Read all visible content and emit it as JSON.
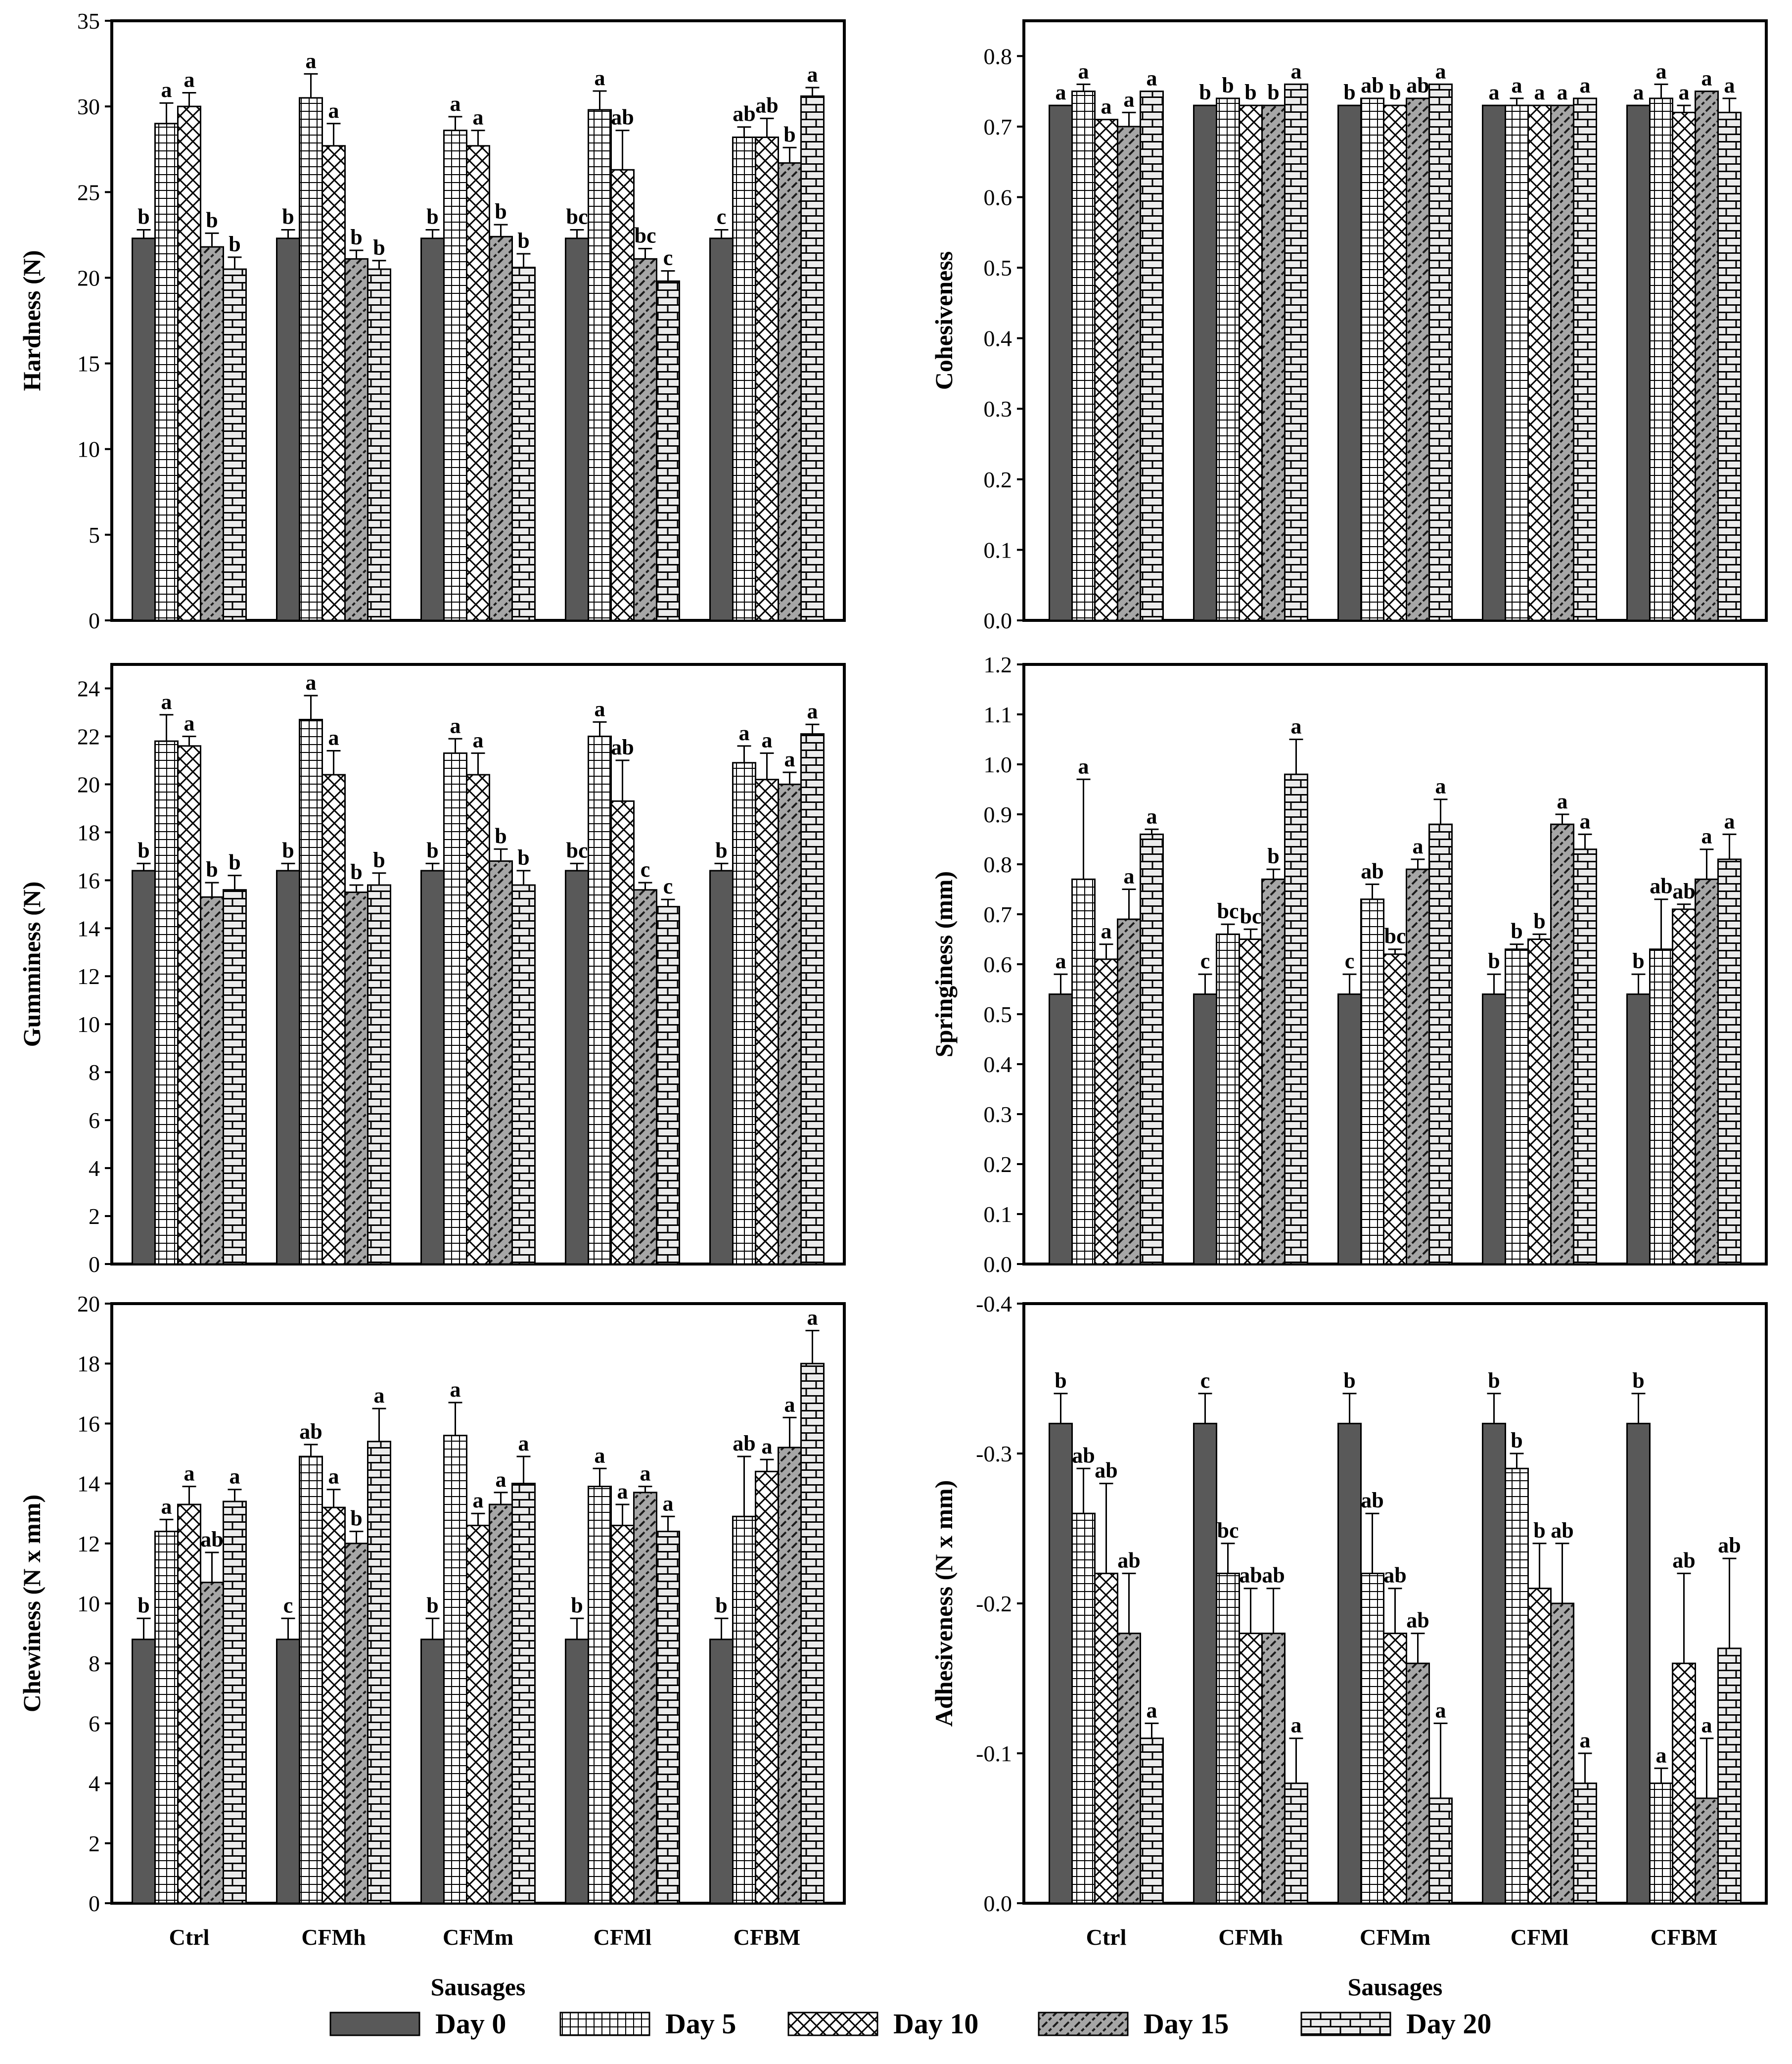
{
  "figure": {
    "categories": [
      "Ctrl",
      "CFMh",
      "CFMm",
      "CFMl",
      "CFBM"
    ],
    "series_names": [
      "Day 0",
      "Day 5",
      "Day 10",
      "Day 15",
      "Day 20"
    ],
    "xlabel": "Sausages",
    "legend_position": "bottom",
    "series_colors": [
      "#595959",
      "#ffffff",
      "#ffffff",
      "#a6a6a6",
      "#ececec"
    ],
    "series_patterns": [
      "solid",
      "grid",
      "crosshatch",
      "diagonal",
      "brick"
    ]
  },
  "chart_data": [
    {
      "type": "bar",
      "panel": "hardness",
      "ylabel": "Hardness (N)",
      "ylim": [
        0,
        35
      ],
      "yticks": [
        0,
        5,
        10,
        15,
        20,
        25,
        30,
        35
      ],
      "ytick_labels": [
        "0",
        "5",
        "10",
        "15",
        "20",
        "25",
        "30",
        "35"
      ],
      "xtick_labels_shown": false,
      "categories": [
        "Ctrl",
        "CFMh",
        "CFMm",
        "CFMl",
        "CFBM"
      ],
      "series": [
        {
          "name": "Day 0",
          "values": [
            22.3,
            22.3,
            22.3,
            22.3,
            22.3
          ],
          "errors": [
            0.5,
            0.5,
            0.5,
            0.5,
            0.5
          ],
          "letters": [
            "b",
            "b",
            "b",
            "bc",
            "c"
          ]
        },
        {
          "name": "Day 5",
          "values": [
            29.0,
            30.5,
            28.6,
            29.8,
            28.2
          ],
          "errors": [
            1.2,
            1.4,
            0.8,
            1.1,
            0.6
          ],
          "letters": [
            "a",
            "a",
            "a",
            "a",
            "ab"
          ]
        },
        {
          "name": "Day 10",
          "values": [
            30.0,
            27.7,
            27.7,
            26.3,
            28.2
          ],
          "errors": [
            0.8,
            1.3,
            0.9,
            2.3,
            1.1
          ],
          "letters": [
            "a",
            "a",
            "a",
            "ab",
            "ab"
          ]
        },
        {
          "name": "Day 15",
          "values": [
            21.8,
            21.1,
            22.4,
            21.1,
            26.7
          ],
          "errors": [
            0.8,
            0.5,
            0.7,
            0.6,
            0.9
          ],
          "letters": [
            "b",
            "b",
            "b",
            "bc",
            "b"
          ]
        },
        {
          "name": "Day 20",
          "values": [
            20.5,
            20.5,
            20.6,
            19.8,
            30.6
          ],
          "errors": [
            0.7,
            0.5,
            0.8,
            0.6,
            0.5
          ],
          "letters": [
            "b",
            "b",
            "b",
            "c",
            "a"
          ]
        }
      ]
    },
    {
      "type": "bar",
      "panel": "cohesiveness",
      "ylabel": "Cohesiveness",
      "ylim": [
        0,
        0.85
      ],
      "yticks": [
        0,
        0.1,
        0.2,
        0.3,
        0.4,
        0.5,
        0.6,
        0.7,
        0.8
      ],
      "ytick_labels": [
        "0.0",
        "0.1",
        "0.2",
        "0.3",
        "0.4",
        "0.5",
        "0.6",
        "0.7",
        "0.8"
      ],
      "xtick_labels_shown": false,
      "categories": [
        "Ctrl",
        "CFMh",
        "CFMm",
        "CFMl",
        "CFBM"
      ],
      "series": [
        {
          "name": "Day 0",
          "values": [
            0.73,
            0.73,
            0.73,
            0.73,
            0.73
          ],
          "errors": [
            0,
            0,
            0,
            0,
            0
          ],
          "letters": [
            "a",
            "b",
            "b",
            "a",
            "a"
          ]
        },
        {
          "name": "Day 5",
          "values": [
            0.75,
            0.74,
            0.74,
            0.73,
            0.74
          ],
          "errors": [
            0.01,
            0,
            0,
            0.01,
            0.02
          ],
          "letters": [
            "a",
            "b",
            "ab",
            "a",
            "a"
          ]
        },
        {
          "name": "Day 10",
          "values": [
            0.71,
            0.73,
            0.73,
            0.73,
            0.72
          ],
          "errors": [
            0,
            0,
            0,
            0,
            0.01
          ],
          "letters": [
            "a",
            "b",
            "b",
            "a",
            "a"
          ]
        },
        {
          "name": "Day 15",
          "values": [
            0.7,
            0.73,
            0.74,
            0.73,
            0.75
          ],
          "errors": [
            0.02,
            0,
            0,
            0,
            0
          ],
          "letters": [
            "a",
            "b",
            "ab",
            "a",
            "a"
          ]
        },
        {
          "name": "Day 20",
          "values": [
            0.75,
            0.76,
            0.76,
            0.74,
            0.72
          ],
          "errors": [
            0,
            0,
            0,
            0,
            0.02
          ],
          "letters": [
            "a",
            "a",
            "a",
            "a",
            "a"
          ]
        }
      ]
    },
    {
      "type": "bar",
      "panel": "gumminess",
      "ylabel": "Gumminess (N)",
      "ylim": [
        0,
        25
      ],
      "yticks": [
        0,
        2,
        4,
        6,
        8,
        10,
        12,
        14,
        16,
        18,
        20,
        22,
        24
      ],
      "ytick_labels": [
        "0",
        "2",
        "4",
        "6",
        "8",
        "10",
        "12",
        "14",
        "16",
        "18",
        "20",
        "22",
        "24"
      ],
      "xtick_labels_shown": false,
      "categories": [
        "Ctrl",
        "CFMh",
        "CFMm",
        "CFMl",
        "CFBM"
      ],
      "series": [
        {
          "name": "Day 0",
          "values": [
            16.4,
            16.4,
            16.4,
            16.4,
            16.4
          ],
          "errors": [
            0.3,
            0.3,
            0.3,
            0.3,
            0.3
          ],
          "letters": [
            "b",
            "b",
            "b",
            "bc",
            "b"
          ]
        },
        {
          "name": "Day 5",
          "values": [
            21.8,
            22.7,
            21.3,
            22.0,
            20.9
          ],
          "errors": [
            1.1,
            1.0,
            0.6,
            0.6,
            0.7
          ],
          "letters": [
            "a",
            "a",
            "a",
            "a",
            "a"
          ]
        },
        {
          "name": "Day 10",
          "values": [
            21.6,
            20.4,
            20.4,
            19.3,
            20.2
          ],
          "errors": [
            0.4,
            1.0,
            0.9,
            1.7,
            1.1
          ],
          "letters": [
            "a",
            "a",
            "a",
            "ab",
            "a"
          ]
        },
        {
          "name": "Day 15",
          "values": [
            15.3,
            15.5,
            16.8,
            15.6,
            20.0
          ],
          "errors": [
            0.6,
            0.3,
            0.5,
            0.3,
            0.5
          ],
          "letters": [
            "b",
            "b",
            "b",
            "c",
            "a"
          ]
        },
        {
          "name": "Day 20",
          "values": [
            15.6,
            15.8,
            15.8,
            14.9,
            22.1
          ],
          "errors": [
            0.6,
            0.5,
            0.6,
            0.3,
            0.4
          ],
          "letters": [
            "b",
            "b",
            "b",
            "c",
            "a"
          ]
        }
      ]
    },
    {
      "type": "bar",
      "panel": "springiness",
      "ylabel": "Springiness (mm)",
      "ylim": [
        0,
        1.2
      ],
      "yticks": [
        0,
        0.1,
        0.2,
        0.3,
        0.4,
        0.5,
        0.6,
        0.7,
        0.8,
        0.9,
        1.0,
        1.1,
        1.2
      ],
      "ytick_labels": [
        "0.0",
        "0.1",
        "0.2",
        "0.3",
        "0.4",
        "0.5",
        "0.6",
        "0.7",
        "0.8",
        "0.9",
        "1.0",
        "1.1",
        "1.2"
      ],
      "xtick_labels_shown": false,
      "categories": [
        "Ctrl",
        "CFMh",
        "CFMm",
        "CFMl",
        "CFBM"
      ],
      "series": [
        {
          "name": "Day 0",
          "values": [
            0.54,
            0.54,
            0.54,
            0.54,
            0.54
          ],
          "errors": [
            0.04,
            0.04,
            0.04,
            0.04,
            0.04
          ],
          "letters": [
            "a",
            "c",
            "c",
            "b",
            "b"
          ]
        },
        {
          "name": "Day 5",
          "values": [
            0.77,
            0.66,
            0.73,
            0.63,
            0.63
          ],
          "errors": [
            0.2,
            0.02,
            0.03,
            0.01,
            0.1
          ],
          "letters": [
            "a",
            "bc",
            "ab",
            "b",
            "ab"
          ]
        },
        {
          "name": "Day 10",
          "values": [
            0.61,
            0.65,
            0.62,
            0.65,
            0.71
          ],
          "errors": [
            0.03,
            0.02,
            0.01,
            0.01,
            0.01
          ],
          "letters": [
            "a",
            "bc",
            "bc",
            "b",
            "ab"
          ]
        },
        {
          "name": "Day 15",
          "values": [
            0.69,
            0.77,
            0.79,
            0.88,
            0.77
          ],
          "errors": [
            0.06,
            0.02,
            0.02,
            0.02,
            0.06
          ],
          "letters": [
            "a",
            "b",
            "a",
            "a",
            "a"
          ]
        },
        {
          "name": "Day 20",
          "values": [
            0.86,
            0.98,
            0.88,
            0.83,
            0.81
          ],
          "errors": [
            0.01,
            0.07,
            0.05,
            0.03,
            0.05
          ],
          "letters": [
            "a",
            "a",
            "a",
            "a",
            "a"
          ]
        }
      ]
    },
    {
      "type": "bar",
      "panel": "chewiness",
      "ylabel": "Chewiness (N x mm)",
      "xlabel": "Sausages",
      "ylim": [
        0,
        20
      ],
      "yticks": [
        0,
        2,
        4,
        6,
        8,
        10,
        12,
        14,
        16,
        18,
        20
      ],
      "ytick_labels": [
        "0",
        "2",
        "4",
        "6",
        "8",
        "10",
        "12",
        "14",
        "16",
        "18",
        "20"
      ],
      "xtick_labels_shown": true,
      "categories": [
        "Ctrl",
        "CFMh",
        "CFMm",
        "CFMl",
        "CFBM"
      ],
      "series": [
        {
          "name": "Day 0",
          "values": [
            8.8,
            8.8,
            8.8,
            8.8,
            8.8
          ],
          "errors": [
            0.7,
            0.7,
            0.7,
            0.7,
            0.7
          ],
          "letters": [
            "b",
            "c",
            "b",
            "b",
            "b"
          ]
        },
        {
          "name": "Day 5",
          "values": [
            12.4,
            14.9,
            15.6,
            13.9,
            12.9
          ],
          "errors": [
            0.4,
            0.4,
            1.1,
            0.6,
            2.0
          ],
          "letters": [
            "a",
            "ab",
            "a",
            "a",
            "ab"
          ]
        },
        {
          "name": "Day 10",
          "values": [
            13.3,
            13.2,
            12.6,
            12.6,
            14.4
          ],
          "errors": [
            0.6,
            0.6,
            0.4,
            0.7,
            0.4
          ],
          "letters": [
            "a",
            "a",
            "a",
            "a",
            "a"
          ]
        },
        {
          "name": "Day 15",
          "values": [
            10.7,
            12.0,
            13.3,
            13.7,
            15.2
          ],
          "errors": [
            1.0,
            0.4,
            0.4,
            0.2,
            1.0
          ],
          "letters": [
            "ab",
            "b",
            "a",
            "a",
            "a"
          ]
        },
        {
          "name": "Day 20",
          "values": [
            13.4,
            15.4,
            14.0,
            12.4,
            18.0
          ],
          "errors": [
            0.4,
            1.1,
            0.9,
            0.5,
            1.1
          ],
          "letters": [
            "a",
            "a",
            "a",
            "a",
            "a"
          ]
        }
      ]
    },
    {
      "type": "bar",
      "panel": "adhesiveness",
      "ylabel": "Adhesiveness (N x mm)",
      "xlabel": "Sausages",
      "ylim": [
        0,
        -0.4
      ],
      "y_axis_inverted": true,
      "yticks": [
        0,
        -0.1,
        -0.2,
        -0.3,
        -0.4
      ],
      "ytick_labels": [
        "0.0",
        "-0.1",
        "-0.2",
        "-0.3",
        "-0.4"
      ],
      "xtick_labels_shown": true,
      "categories": [
        "Ctrl",
        "CFMh",
        "CFMm",
        "CFMl",
        "CFBM"
      ],
      "series": [
        {
          "name": "Day 0",
          "values": [
            -0.32,
            -0.32,
            -0.32,
            -0.32,
            -0.32
          ],
          "errors": [
            0.02,
            0.02,
            0.02,
            0.02,
            0.02
          ],
          "letters": [
            "b",
            "c",
            "b",
            "b",
            "b"
          ]
        },
        {
          "name": "Day 5",
          "values": [
            -0.26,
            -0.22,
            -0.22,
            -0.29,
            -0.08
          ],
          "errors": [
            0.03,
            0.02,
            0.04,
            0.01,
            0.01
          ],
          "letters": [
            "ab",
            "bc",
            "ab",
            "b",
            "a"
          ]
        },
        {
          "name": "Day 10",
          "values": [
            -0.22,
            -0.18,
            -0.18,
            -0.21,
            -0.16
          ],
          "errors": [
            0.06,
            0.03,
            0.03,
            0.03,
            0.06
          ],
          "letters": [
            "ab",
            "ab",
            "ab",
            "b",
            "ab"
          ]
        },
        {
          "name": "Day 15",
          "values": [
            -0.18,
            -0.18,
            -0.16,
            -0.2,
            -0.07
          ],
          "errors": [
            0.04,
            0.03,
            0.02,
            0.04,
            0.04
          ],
          "letters": [
            "ab",
            "ab",
            "ab",
            "ab",
            "a"
          ]
        },
        {
          "name": "Day 20",
          "values": [
            -0.11,
            -0.08,
            -0.07,
            -0.08,
            -0.17
          ],
          "errors": [
            0.01,
            0.03,
            0.05,
            0.02,
            0.06
          ],
          "letters": [
            "a",
            "a",
            "a",
            "a",
            "ab"
          ]
        }
      ]
    }
  ]
}
